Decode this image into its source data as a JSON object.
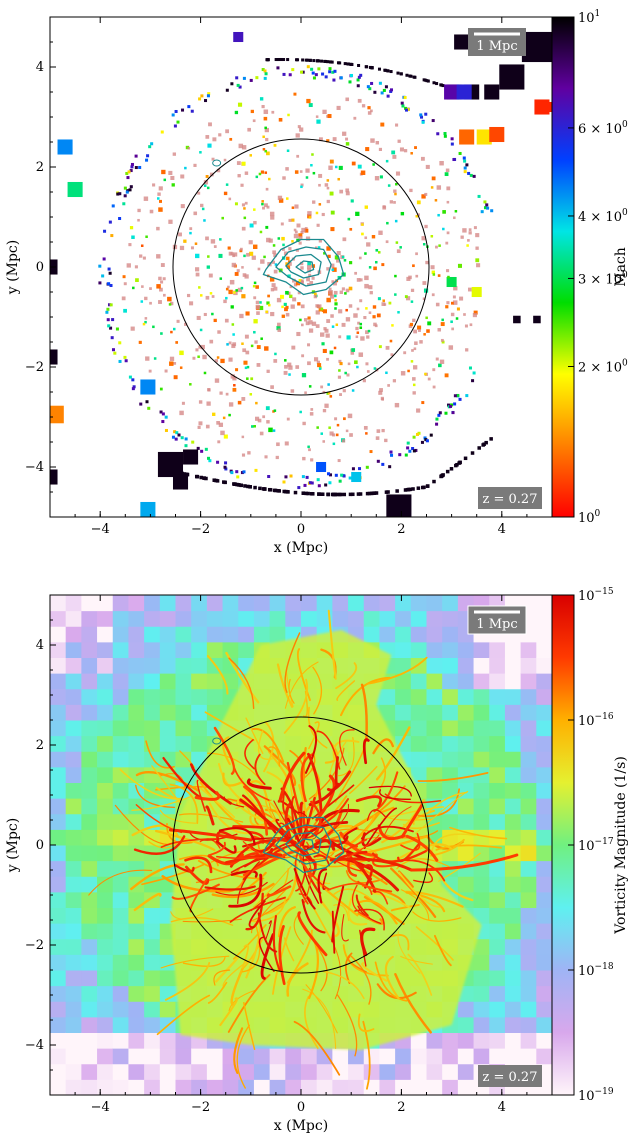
{
  "chart_data": [
    {
      "type": "heatmap",
      "title": "",
      "xlabel": "x  (Mpc)",
      "ylabel": "y  (Mpc)",
      "xlim": [
        -5,
        5
      ],
      "ylim": [
        -5,
        5
      ],
      "xticks": [
        -4,
        -2,
        0,
        2,
        4
      ],
      "yticks": [
        -4,
        -2,
        0,
        2,
        4
      ],
      "xtick_labels": [
        "−4",
        "−2",
        "0",
        "2",
        "4"
      ],
      "ytick_labels": [
        "−4",
        "−2",
        "0",
        "2",
        "4"
      ],
      "colorbar": {
        "label": "Mach",
        "scale": "log",
        "range": [
          1,
          10
        ],
        "ticks": [
          {
            "value": 1,
            "base": "10",
            "exp": "0"
          },
          {
            "value": 2,
            "base": "2 × 10",
            "exp": "0"
          },
          {
            "value": 3,
            "base": "3 × 10",
            "exp": "0"
          },
          {
            "value": 4,
            "base": "4 × 10",
            "exp": "0"
          },
          {
            "value": 6,
            "base": "6 × 10",
            "exp": "0"
          },
          {
            "value": 10,
            "base": "10",
            "exp": "1"
          }
        ],
        "colormap": [
          "#ff0000",
          "#ff8000",
          "#ffff00",
          "#00dd00",
          "#00e5e5",
          "#0040ff",
          "#6000a0",
          "#000000"
        ]
      },
      "scale_bar": "1 Mpc",
      "redshift_label": "z = 0.27",
      "circle": {
        "cx": 0,
        "cy": 0,
        "r": 2.55
      },
      "colors": {
        "contour": "#1a8a8f",
        "circle": "#000000"
      }
    },
    {
      "type": "heatmap",
      "title": "",
      "xlabel": "x  (Mpc)",
      "ylabel": "y  (Mpc)",
      "xlim": [
        -5,
        5
      ],
      "ylim": [
        -5,
        5
      ],
      "xticks": [
        -4,
        -2,
        0,
        2,
        4
      ],
      "yticks": [
        -4,
        -2,
        0,
        2,
        4
      ],
      "xtick_labels": [
        "−4",
        "−2",
        "0",
        "2",
        "4"
      ],
      "ytick_labels": [
        "−4",
        "−2",
        "0",
        "2",
        "4"
      ],
      "colorbar": {
        "label": "Vorticity Magnitude  (1/s)",
        "scale": "log",
        "range": [
          -19,
          -15
        ],
        "ticks": [
          {
            "value": -19,
            "base": "10",
            "exp": "−19"
          },
          {
            "value": -18,
            "base": "10",
            "exp": "−18"
          },
          {
            "value": -17,
            "base": "10",
            "exp": "−17"
          },
          {
            "value": -16,
            "base": "10",
            "exp": "−16"
          },
          {
            "value": -15,
            "base": "10",
            "exp": "−15"
          }
        ],
        "colormap": [
          "#fff5fa",
          "#d8a8ec",
          "#9fb4f5",
          "#5ff0f0",
          "#70f080",
          "#e5f030",
          "#ffb000",
          "#ff3a00",
          "#d80000"
        ]
      },
      "scale_bar": "1 Mpc",
      "redshift_label": "z = 0.27",
      "circle": {
        "cx": 0,
        "cy": 0,
        "r": 2.55
      },
      "colors": {
        "contour": "#1a8a8f",
        "circle": "#000000"
      }
    }
  ]
}
